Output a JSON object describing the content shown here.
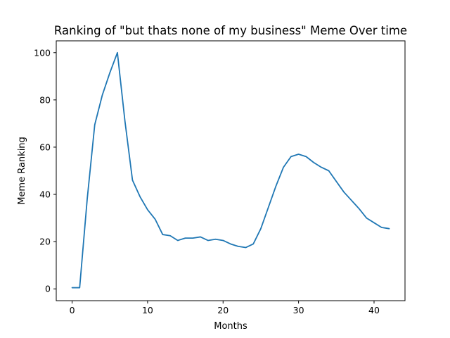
{
  "chart_data": {
    "type": "line",
    "title": "Ranking of \"but thats none of my business\" Meme Over time",
    "xlabel": "Months",
    "ylabel": "Meme Ranking",
    "xlim": [
      -2.1,
      44.1
    ],
    "ylim": [
      -5,
      105
    ],
    "xticks": [
      0,
      10,
      20,
      30,
      40
    ],
    "yticks": [
      0,
      20,
      40,
      60,
      80,
      100
    ],
    "grid": false,
    "line_color": "#1f77b4",
    "x": [
      0,
      1,
      2,
      3,
      4,
      5,
      6,
      7,
      8,
      9,
      10,
      11,
      12,
      13,
      14,
      15,
      16,
      17,
      18,
      19,
      20,
      21,
      22,
      23,
      24,
      25,
      26,
      27,
      28,
      29,
      30,
      31,
      32,
      33,
      34,
      35,
      36,
      37,
      38,
      39,
      40,
      41,
      42
    ],
    "y": [
      0.5,
      0.5,
      38,
      69.5,
      82,
      91.5,
      100,
      71,
      46,
      39,
      33.5,
      29.5,
      23,
      22.5,
      20.5,
      21.5,
      21.5,
      22,
      20.5,
      21,
      20.5,
      19,
      18,
      17.5,
      19,
      25.5,
      34.5,
      43.5,
      51.5,
      56,
      57,
      56,
      53.5,
      51.5,
      50,
      45.5,
      41,
      37.5,
      34,
      30,
      28,
      26,
      25.5
    ]
  }
}
